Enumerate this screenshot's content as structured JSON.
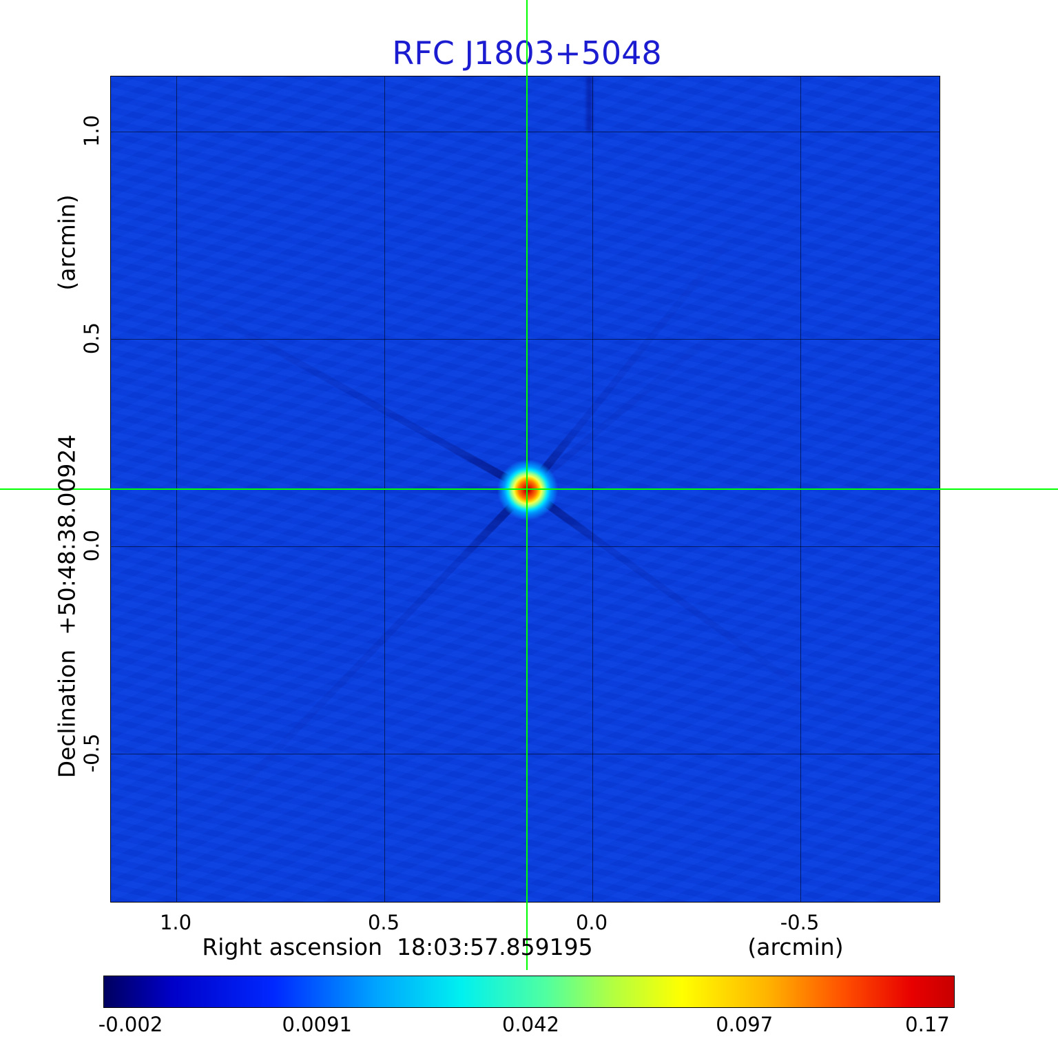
{
  "title": "RFC J1803+5048",
  "axes": {
    "x_label": "Right ascension  18:03:57.859195",
    "x_unit": "(arcmin)",
    "y_label": "Declination  +50:48:38.00924",
    "y_unit": "(arcmin)",
    "x_ticks": [
      "1.0",
      "0.5",
      "0.0",
      "-0.5"
    ],
    "y_ticks": [
      "1.0",
      "0.5",
      "0.0",
      "-0.5"
    ]
  },
  "colorbar": {
    "ticks": [
      "-0.002",
      "0.0091",
      "0.042",
      "0.097",
      "0.17"
    ]
  },
  "colors": {
    "title-color": "#1b1bd0",
    "crosshair-color": "#00ff00",
    "plot-base": "#0a40e0",
    "text-color": "#000000"
  },
  "chart_data": {
    "type": "heatmap",
    "title": "RFC J1803+5048",
    "xlabel": "Right ascension 18:03:57.859195 (arcmin)",
    "ylabel": "Declination +50:48:38.00924 (arcmin)",
    "x_ticks": [
      1.0,
      0.5,
      0.0,
      -0.5
    ],
    "y_ticks": [
      1.0,
      0.5,
      0.0,
      -0.5
    ],
    "x_range": [
      1.16,
      -0.84
    ],
    "y_range": [
      -0.86,
      1.13
    ],
    "grid": true,
    "legend_position": "none",
    "colormap": "jet",
    "colorbar_ticks": [
      -0.002,
      0.0091,
      0.042,
      0.097,
      0.17
    ],
    "value_min": -0.002,
    "value_max": 0.17,
    "background_value": 0.002,
    "source_peak": {
      "x_arcmin": 0.15,
      "y_arcmin": 0.13,
      "value": 0.17
    },
    "crosshair": {
      "x_arcmin": 0.15,
      "y_arcmin": 0.13,
      "color": "#00ff00"
    },
    "features": "single compact bright source at the crosshair position with faint dark sidelobe rays radiating outward over a uniform blue background"
  }
}
